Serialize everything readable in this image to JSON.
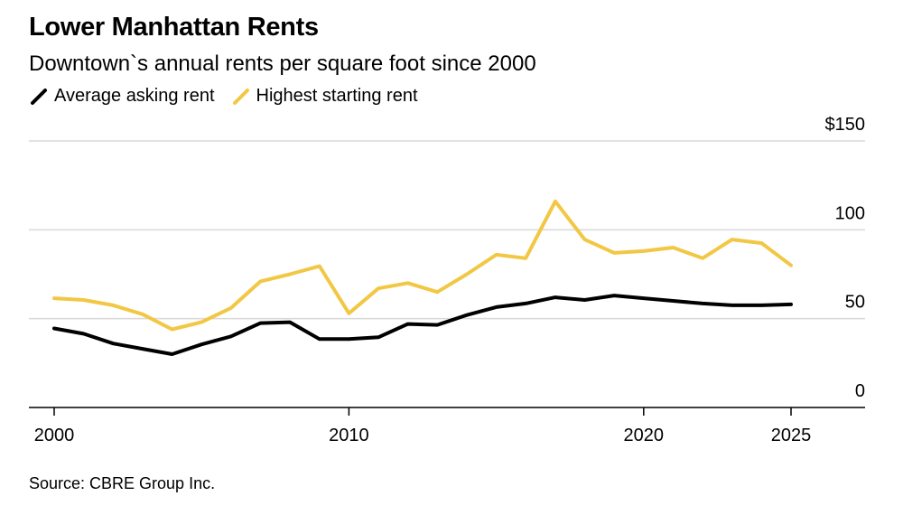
{
  "title": "Lower Manhattan Rents",
  "subtitle": "Downtown`s annual rents per square foot since 2000",
  "source": "Source: CBRE Group Inc.",
  "colors": {
    "average": "#000000",
    "highest": "#f2c744",
    "grid": "#d9d9d9",
    "axis": "#000000"
  },
  "legend": [
    {
      "label": "Average asking rent",
      "color": "#000000"
    },
    {
      "label": "Highest starting rent",
      "color": "#f2c744"
    }
  ],
  "chart_data": {
    "type": "line",
    "title": "Lower Manhattan Rents",
    "subtitle": "Downtown`s annual rents per square foot since 2000",
    "x_ticks": [
      2000,
      2010,
      2020,
      2025
    ],
    "x_tick_labels": [
      "2000",
      "2010",
      "2020",
      "2025"
    ],
    "xlim": [
      1999.5,
      2027.5
    ],
    "y_ticks": [
      0,
      50,
      100,
      150
    ],
    "y_tick_labels": [
      "0",
      "50",
      "100",
      "$150"
    ],
    "ylim": [
      0,
      150
    ],
    "grid": true,
    "legend_position": "top-left",
    "series": [
      {
        "name": "Average asking rent",
        "color": "#000000",
        "x": [
          2000,
          2001,
          2002,
          2003,
          2004,
          2005,
          2006,
          2007,
          2008,
          2009,
          2010,
          2011,
          2012,
          2013,
          2014,
          2015,
          2016,
          2017,
          2018,
          2019,
          2020,
          2021,
          2022,
          2023,
          2024,
          2025
        ],
        "y": [
          44.5,
          41.5,
          36,
          33,
          30,
          35.5,
          40,
          47.5,
          48,
          38.5,
          38.5,
          39.5,
          47,
          46.5,
          52,
          56.5,
          58.5,
          62,
          60.5,
          63,
          61.5,
          60,
          58.5,
          57.5,
          57.5,
          58
        ]
      },
      {
        "name": "Highest starting rent",
        "color": "#f2c744",
        "x": [
          2000,
          2001,
          2002,
          2003,
          2004,
          2005,
          2006,
          2007,
          2008,
          2009,
          2010,
          2011,
          2012,
          2013,
          2014,
          2015,
          2016,
          2017,
          2018,
          2019,
          2020,
          2021,
          2022,
          2023,
          2024,
          2025
        ],
        "y": [
          61.5,
          60.5,
          57.5,
          52.5,
          44,
          48,
          56,
          71,
          75,
          79.5,
          53,
          67,
          70,
          65,
          75,
          86,
          84,
          116,
          94.5,
          87,
          88,
          90,
          84,
          94.5,
          92.5,
          80
        ]
      }
    ]
  }
}
